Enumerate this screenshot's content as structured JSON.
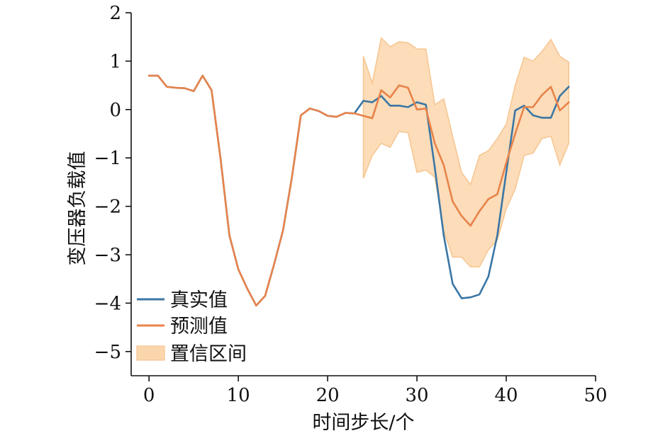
{
  "chart_data": {
    "type": "line",
    "title": "",
    "xlabel": "时间步长/个",
    "ylabel": "变压器负载值",
    "xlim": [
      -2,
      50
    ],
    "ylim": [
      -5.5,
      2
    ],
    "x_ticks": [
      0,
      10,
      20,
      30,
      40,
      50
    ],
    "x_tick_labels": [
      "0",
      "10",
      "20",
      "30",
      "40",
      "50"
    ],
    "y_ticks": [
      -5,
      -4,
      -3,
      -2,
      -1,
      0,
      1,
      2
    ],
    "y_tick_labels": [
      "−5",
      "−4",
      "−3",
      "−2",
      "−1",
      "0",
      "1",
      "2"
    ],
    "grid": false,
    "legend_position": "bottom-left",
    "colors": {
      "actual": "#3b76a4",
      "predicted": "#e8834a",
      "band_fill": "#fbd6ad",
      "band_edge": "#f7c58f"
    },
    "series": [
      {
        "name": "真实值",
        "x": [
          0,
          1,
          2,
          3,
          4,
          5,
          6,
          7,
          8,
          9,
          10,
          11,
          12,
          13,
          14,
          15,
          16,
          17,
          18,
          19,
          20,
          21,
          22,
          23,
          24,
          25,
          26,
          27,
          28,
          29,
          30,
          31,
          32,
          33,
          34,
          35,
          36,
          37,
          38,
          39,
          40,
          41,
          42,
          43,
          44,
          45,
          46,
          47
        ],
        "values": [
          0.7,
          0.7,
          0.47,
          0.45,
          0.44,
          0.38,
          0.7,
          0.4,
          -1.0,
          -2.6,
          -3.3,
          -3.7,
          -4.05,
          -3.85,
          -3.2,
          -2.5,
          -1.4,
          -0.12,
          0.02,
          -0.03,
          -0.13,
          -0.15,
          -0.07,
          -0.08,
          0.18,
          0.15,
          0.28,
          0.08,
          0.08,
          0.05,
          0.15,
          0.1,
          -1.2,
          -2.6,
          -3.6,
          -3.9,
          -3.88,
          -3.82,
          -3.45,
          -2.6,
          -1.3,
          -0.02,
          0.08,
          -0.12,
          -0.17,
          -0.17,
          0.28,
          0.47
        ]
      },
      {
        "name": "预测值",
        "x": [
          0,
          1,
          2,
          3,
          4,
          5,
          6,
          7,
          8,
          9,
          10,
          11,
          12,
          13,
          14,
          15,
          16,
          17,
          18,
          19,
          20,
          21,
          22,
          23,
          24,
          25,
          26,
          27,
          28,
          29,
          30,
          31,
          32,
          33,
          34,
          35,
          36,
          37,
          38,
          39,
          40,
          41,
          42,
          43,
          44,
          45,
          46,
          47
        ],
        "values": [
          0.7,
          0.7,
          0.47,
          0.45,
          0.44,
          0.38,
          0.7,
          0.4,
          -1.0,
          -2.6,
          -3.3,
          -3.7,
          -4.05,
          -3.85,
          -3.2,
          -2.5,
          -1.4,
          -0.12,
          0.02,
          -0.03,
          -0.13,
          -0.15,
          -0.07,
          -0.08,
          -0.13,
          -0.18,
          0.4,
          0.25,
          0.5,
          0.45,
          0.0,
          0.02,
          -0.7,
          -1.15,
          -1.9,
          -2.2,
          -2.4,
          -2.1,
          -1.85,
          -1.75,
          -1.1,
          -0.5,
          0.05,
          0.05,
          0.3,
          0.47,
          -0.02,
          0.15
        ]
      }
    ],
    "band": {
      "name": "置信区间",
      "x": [
        24,
        25,
        26,
        27,
        28,
        29,
        30,
        31,
        32,
        33,
        34,
        35,
        36,
        37,
        38,
        39,
        40,
        41,
        42,
        43,
        44,
        45,
        46,
        47
      ],
      "upper": [
        1.1,
        0.55,
        1.48,
        1.3,
        1.4,
        1.38,
        1.25,
        1.25,
        0.1,
        0.22,
        -0.55,
        -1.3,
        -1.55,
        -0.95,
        -0.85,
        -0.6,
        -0.3,
        0.5,
        1.08,
        1.0,
        1.2,
        1.45,
        1.1,
        0.98
      ],
      "lower": [
        -1.42,
        -0.95,
        -0.7,
        -0.78,
        -0.45,
        -0.48,
        -1.3,
        -1.25,
        -1.4,
        -2.5,
        -3.05,
        -3.05,
        -3.25,
        -3.25,
        -2.9,
        -2.7,
        -2.05,
        -1.65,
        -0.95,
        -0.9,
        -0.6,
        -0.55,
        -1.15,
        -0.7
      ]
    }
  }
}
